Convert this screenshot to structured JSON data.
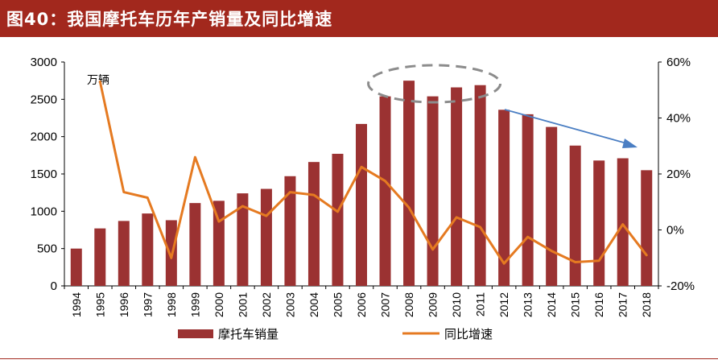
{
  "figure_title": "图40：我国摩托车历年产销量及同比增速",
  "colors": {
    "header": "#a2281d",
    "bar": "#9b3232",
    "line": "#e57a21",
    "arrow": "#4a7ec3",
    "ellipse": "#8c8c8c"
  },
  "chart_data": {
    "type": "bar",
    "categories": [
      "1994",
      "1995",
      "1996",
      "1997",
      "1998",
      "1999",
      "2000",
      "2001",
      "2002",
      "2003",
      "2004",
      "2005",
      "2006",
      "2007",
      "2008",
      "2009",
      "2010",
      "2011",
      "2012",
      "2013",
      "2014",
      "2015",
      "2016",
      "2017",
      "2018"
    ],
    "series": [
      {
        "name": "摩托车销量",
        "type": "bar",
        "axis": "left",
        "values": [
          500,
          770,
          870,
          970,
          880,
          1110,
          1140,
          1240,
          1300,
          1470,
          1660,
          1770,
          2170,
          2540,
          2750,
          2540,
          2660,
          2690,
          2360,
          2300,
          2130,
          1880,
          1680,
          1710,
          1550
        ]
      },
      {
        "name": "同比增速",
        "type": "line",
        "axis": "right",
        "values": [
          null,
          53,
          13.5,
          11.5,
          -10,
          26,
          3,
          8.5,
          5,
          13.5,
          12.5,
          6.5,
          22.5,
          17.5,
          8,
          -7,
          4.5,
          1,
          -12,
          -2.5,
          -7.5,
          -11.5,
          -11,
          2,
          -9
        ]
      }
    ],
    "left_unit": "万辆",
    "y_left": {
      "min": 0,
      "max": 3000,
      "ticks": [
        0,
        500,
        1000,
        1500,
        2000,
        2500,
        3000
      ]
    },
    "y_right": {
      "min": -20,
      "max": 60,
      "ticks": [
        "-20%",
        "0%",
        "20%",
        "40%",
        "60%"
      ]
    },
    "grid": false,
    "legend_position": "bottom",
    "annotations": [
      "dashed-ellipse-around-2007-2011-peak",
      "downward-trend-arrow-2011-2018"
    ]
  }
}
